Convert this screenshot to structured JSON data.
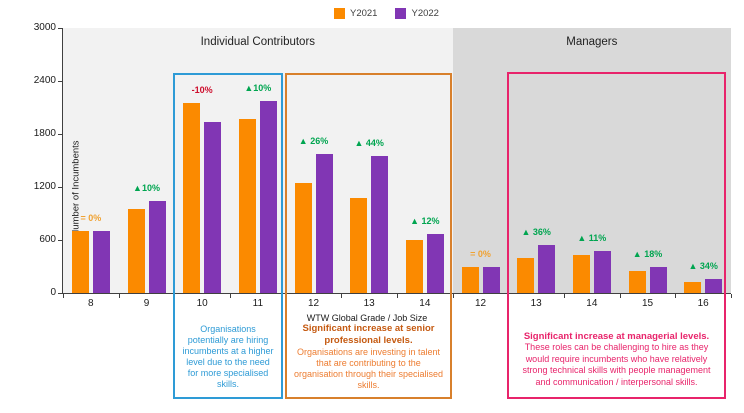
{
  "legend": {
    "items": [
      {
        "label": "Y2021",
        "color": "#FB8A00"
      },
      {
        "label": "Y2022",
        "color": "#8136B4"
      }
    ]
  },
  "chart_data": {
    "type": "bar",
    "title": "",
    "ylabel": "Number of Incumbents",
    "xlabel": "WTW Global Grade / Job Size",
    "ylim": [
      0,
      3000
    ],
    "yticks": [
      0,
      600,
      1200,
      1800,
      2400,
      3000
    ],
    "grid": "off",
    "legend_position": "top-center",
    "sections": [
      {
        "label": "Individual Contributors",
        "count": 7,
        "bg": "#F2F2F2"
      },
      {
        "label": "Managers",
        "count": 5,
        "bg": "#D9D9D9"
      }
    ],
    "categories": [
      "8",
      "9",
      "10",
      "11",
      "12",
      "13",
      "14",
      "12",
      "13",
      "14",
      "15",
      "16"
    ],
    "series": [
      {
        "name": "Y2021",
        "color": "#FB8A00",
        "values": [
          700,
          950,
          2150,
          1975,
          1250,
          1075,
          600,
          300,
          400,
          430,
          250,
          120
        ]
      },
      {
        "name": "Y2022",
        "color": "#8136B4",
        "values": [
          700,
          1045,
          1935,
          2173,
          1575,
          1548,
          672,
          300,
          544,
          477,
          295,
          161
        ]
      }
    ],
    "deltas": [
      {
        "text": "= 0%",
        "kind": "zero"
      },
      {
        "text": "▲10%",
        "kind": "up"
      },
      {
        "text": "-10%",
        "kind": "down"
      },
      {
        "text": "▲10%",
        "kind": "up"
      },
      {
        "text": "▲ 26%",
        "kind": "up"
      },
      {
        "text": "▲ 44%",
        "kind": "up"
      },
      {
        "text": "▲ 12%",
        "kind": "up"
      },
      {
        "text": "= 0%",
        "kind": "zero"
      },
      {
        "text": "▲ 36%",
        "kind": "up"
      },
      {
        "text": "▲ 11%",
        "kind": "up"
      },
      {
        "text": "▲ 18%",
        "kind": "up"
      },
      {
        "text": "▲ 34%",
        "kind": "up"
      }
    ],
    "delta_colors": {
      "up": "#00A550",
      "down": "#CE0E2D",
      "zero": "#F0A232"
    }
  },
  "annotations": {
    "blue": {
      "border": "#2E9BD6",
      "text_color": "#2E9BD6",
      "body": "Organisations potentially are hiring incumbents at a higher level due to the need for more specialised skills."
    },
    "orange": {
      "border": "#D8802C",
      "heading_color": "#C55A11",
      "body_color": "#ED7D31",
      "heading": "Significant increase at senior professional levels.",
      "body": "Organisations are investing in talent that are contributing to the organisation through their specialised skills."
    },
    "pink": {
      "border": "#E8246B",
      "text_color": "#E8246B",
      "heading": "Significant increase at managerial levels.",
      "body": "These roles can be challenging to hire as they would require incumbents who have relatively strong technical skills with people management and communication / interpersonal skills."
    }
  }
}
